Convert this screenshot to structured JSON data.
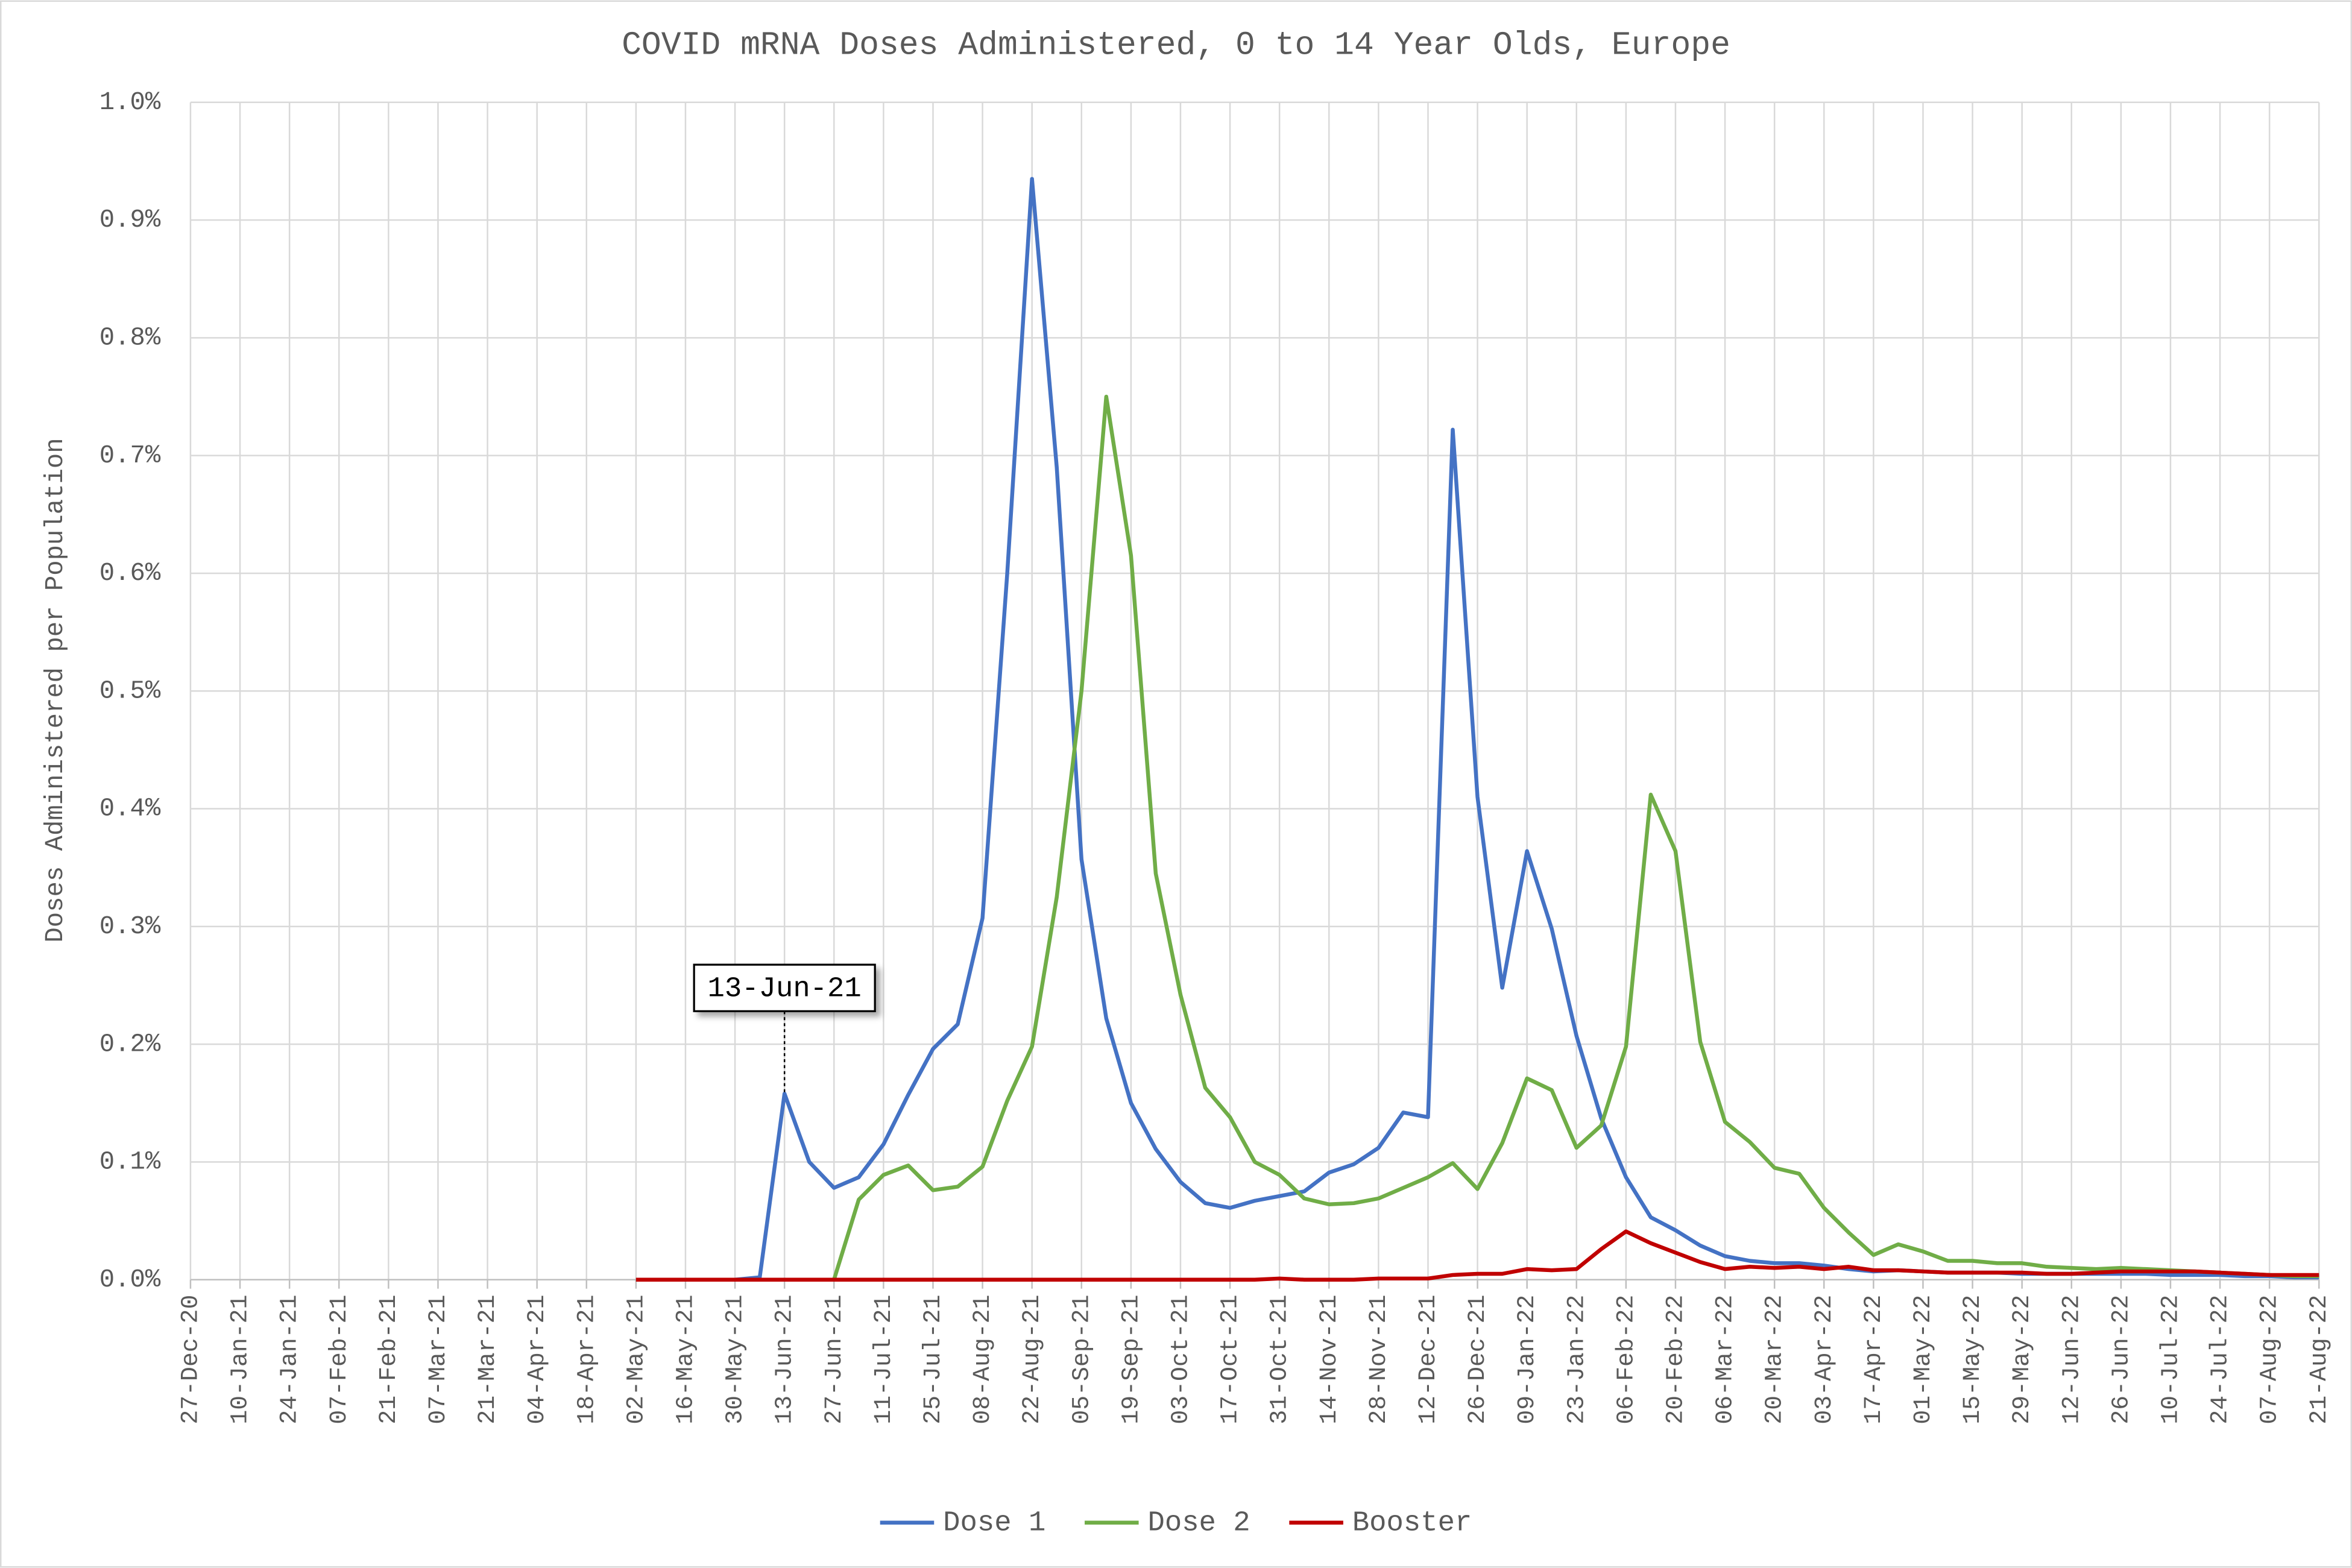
{
  "chart_data": {
    "type": "line",
    "title": "COVID mRNA Doses Administered, 0 to 14 Year Olds, Europe",
    "y_label": "Doses Administered per Population",
    "categories": [
      "27-Dec-20",
      null,
      "10-Jan-21",
      null,
      "24-Jan-21",
      null,
      "07-Feb-21",
      null,
      "21-Feb-21",
      null,
      "07-Mar-21",
      null,
      "21-Mar-21",
      null,
      "04-Apr-21",
      null,
      "18-Apr-21",
      null,
      "02-May-21",
      null,
      "16-May-21",
      null,
      "30-May-21",
      null,
      "13-Jun-21",
      null,
      "27-Jun-21",
      null,
      "11-Jul-21",
      null,
      "25-Jul-21",
      null,
      "08-Aug-21",
      null,
      "22-Aug-21",
      null,
      "05-Sep-21",
      null,
      "19-Sep-21",
      null,
      "03-Oct-21",
      null,
      "17-Oct-21",
      null,
      "31-Oct-21",
      null,
      "14-Nov-21",
      null,
      "28-Nov-21",
      null,
      "12-Dec-21",
      null,
      "26-Dec-21",
      null,
      "09-Jan-22",
      null,
      "23-Jan-22",
      null,
      "06-Feb-22",
      null,
      "20-Feb-22",
      null,
      "06-Mar-22",
      null,
      "20-Mar-22",
      null,
      "03-Apr-22",
      null,
      "17-Apr-22",
      null,
      "01-May-22",
      null,
      "15-May-22",
      null,
      "29-May-22",
      null,
      "12-Jun-22",
      null,
      "26-Jun-22",
      null,
      "10-Jul-22",
      null,
      "24-Jul-22",
      null,
      "07-Aug-22",
      null,
      "21-Aug-22"
    ],
    "series": [
      {
        "name": "Dose 1",
        "color": "#4472c4",
        "values": [
          null,
          null,
          null,
          null,
          null,
          null,
          null,
          null,
          null,
          null,
          null,
          null,
          null,
          null,
          null,
          null,
          null,
          null,
          0,
          0,
          0,
          0,
          0,
          0.002,
          0.158,
          0.1,
          0.078,
          0.087,
          0.115,
          0.157,
          0.196,
          0.217,
          0.307,
          0.6,
          0.935,
          0.69,
          0.357,
          0.222,
          0.15,
          0.111,
          0.083,
          0.065,
          0.061,
          0.067,
          0.071,
          0.075,
          0.091,
          0.098,
          0.112,
          0.142,
          0.138,
          0.722,
          0.41,
          0.248,
          0.364,
          0.298,
          0.207,
          0.137,
          0.087,
          0.053,
          0.042,
          0.029,
          0.02,
          0.016,
          0.014,
          0.014,
          0.012,
          0.009,
          0.007,
          0.008,
          0.007,
          0.006,
          0.006,
          0.006,
          0.005,
          0.005,
          0.005,
          0.005,
          0.005,
          0.005,
          0.004,
          0.004,
          0.004,
          0.003,
          0.003,
          0.002,
          0.002
        ]
      },
      {
        "name": "Dose 2",
        "color": "#70ad47",
        "values": [
          null,
          null,
          null,
          null,
          null,
          null,
          null,
          null,
          null,
          null,
          null,
          null,
          null,
          null,
          null,
          null,
          null,
          null,
          0,
          0,
          0,
          0,
          0,
          0,
          0,
          0,
          0,
          0.068,
          0.089,
          0.097,
          0.076,
          0.079,
          0.096,
          0.152,
          0.198,
          0.325,
          0.5,
          0.75,
          0.615,
          0.345,
          0.242,
          0.163,
          0.138,
          0.1,
          0.089,
          0.069,
          0.064,
          0.065,
          0.069,
          0.078,
          0.087,
          0.099,
          0.077,
          0.116,
          0.171,
          0.161,
          0.112,
          0.131,
          0.198,
          0.412,
          0.364,
          0.202,
          0.134,
          0.117,
          0.095,
          0.09,
          0.061,
          0.04,
          0.021,
          0.03,
          0.024,
          0.016,
          0.016,
          0.014,
          0.014,
          0.011,
          0.01,
          0.009,
          0.01,
          0.009,
          0.008,
          0.007,
          0.006,
          0.005,
          0.004,
          0.003,
          0.003
        ]
      },
      {
        "name": "Booster",
        "color": "#c00000",
        "values": [
          null,
          null,
          null,
          null,
          null,
          null,
          null,
          null,
          null,
          null,
          null,
          null,
          null,
          null,
          null,
          null,
          null,
          null,
          0,
          0,
          0,
          0,
          0,
          0,
          0,
          0,
          0,
          0,
          0,
          0,
          0,
          0,
          0,
          0,
          0,
          0,
          0,
          0,
          0,
          0,
          0,
          0,
          0,
          0,
          0.001,
          0,
          0,
          0,
          0.001,
          0.001,
          0.001,
          0.004,
          0.005,
          0.005,
          0.009,
          0.008,
          0.009,
          0.026,
          0.041,
          0.031,
          0.023,
          0.015,
          0.009,
          0.011,
          0.01,
          0.011,
          0.009,
          0.011,
          0.008,
          0.008,
          0.007,
          0.006,
          0.006,
          0.006,
          0.006,
          0.005,
          0.005,
          0.006,
          0.007,
          0.007,
          0.007,
          0.007,
          0.006,
          0.005,
          0.004,
          0.004,
          0.004
        ]
      }
    ],
    "ylim": [
      0,
      1.0
    ],
    "yticks": [
      {
        "value": 0,
        "label": "0.0%"
      },
      {
        "value": 0.1,
        "label": "0.1%"
      },
      {
        "value": 0.2,
        "label": "0.2%"
      },
      {
        "value": 0.3,
        "label": "0.3%"
      },
      {
        "value": 0.4,
        "label": "0.4%"
      },
      {
        "value": 0.5,
        "label": "0.5%"
      },
      {
        "value": 0.6,
        "label": "0.6%"
      },
      {
        "value": 0.7,
        "label": "0.7%"
      },
      {
        "value": 0.8,
        "label": "0.8%"
      },
      {
        "value": 0.9,
        "label": "0.9%"
      },
      {
        "value": 1.0,
        "label": "1.0%"
      }
    ],
    "grid": true,
    "legend": "bottom",
    "annotation": {
      "label": "13-Jun-21",
      "series": 0
    }
  }
}
